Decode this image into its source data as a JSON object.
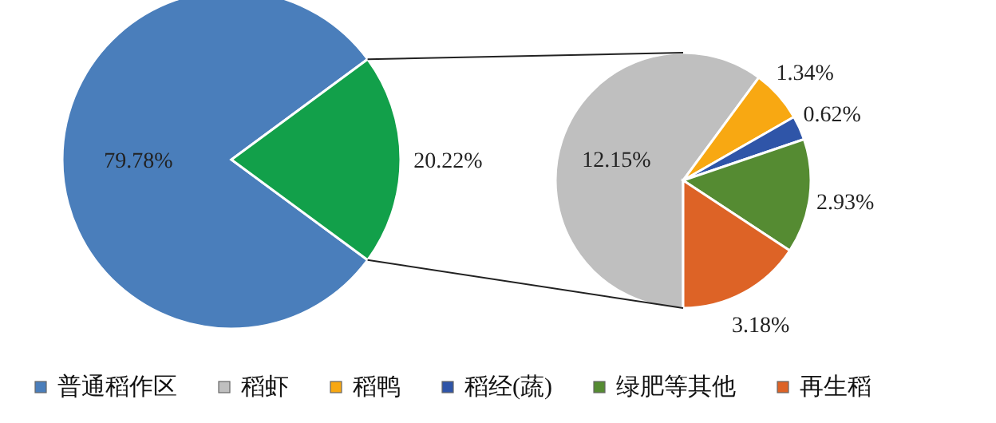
{
  "chart_data": [
    {
      "type": "pie",
      "categories": [
        "普通稻作区",
        null
      ],
      "values": [
        79.78,
        20.22
      ],
      "colors": [
        "#4a7ebb",
        "#12a04a"
      ],
      "value_labels": [
        "79.78%",
        "20.22%"
      ],
      "legend": "bottom"
    },
    {
      "type": "pie",
      "categories": [
        "稻虾",
        "稻鸭",
        "稻经(蔬)",
        "绿肥等其他",
        "再生稻"
      ],
      "values": [
        12.15,
        1.34,
        0.62,
        2.93,
        3.18
      ],
      "colors": [
        "#bfbfbf",
        "#f8a812",
        "#2f55a8",
        "#558b32",
        "#dd6326"
      ],
      "value_labels": [
        "12.15%",
        "1.34%",
        "0.62%",
        "2.93%",
        "3.18%"
      ],
      "legend": "bottom"
    }
  ]
}
